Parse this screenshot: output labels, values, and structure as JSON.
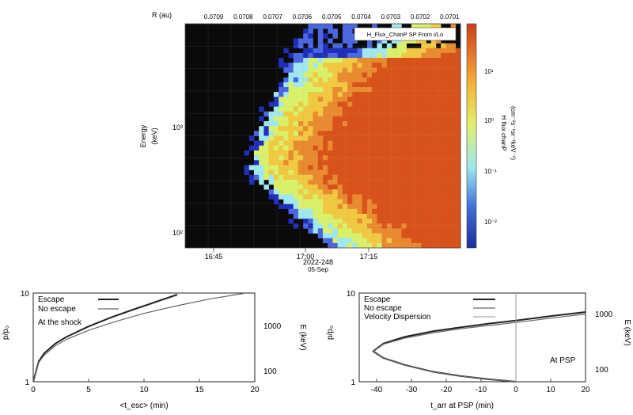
{
  "top_panel": {
    "r_axis_label": "R (au)",
    "r_ticks": [
      "0.0709",
      "0.0708",
      "0.0707",
      "0.0706",
      "0.0705",
      "0.0704",
      "0.0703",
      "0.0702",
      "0.0701"
    ],
    "legend_label": "H_Flux_ChanP SP From i/Lo",
    "ylabel_line1": "Energy",
    "ylabel_line2": "(keV)",
    "y_ticks": [
      "10²",
      "10³"
    ],
    "x_ticks": [
      "16:45",
      "17:00",
      "17:15"
    ],
    "date_line1": "2022-248",
    "date_line2": "05-Sep",
    "colorbar_label_line1": "H flux chanP",
    "colorbar_label_line2": "(cm⁻²s⁻¹sr⁻¹keV⁻¹)",
    "colorbar_ticks": [
      "10¹",
      "10⁰",
      "10⁻¹",
      "10⁻²"
    ],
    "colors": [
      "#0a0a0a",
      "#1f2fb8",
      "#4a66e0",
      "#9fe8f0",
      "#d9f06a",
      "#f0c842",
      "#e88b30",
      "#d8521c"
    ]
  },
  "chart_data": [
    {
      "type": "heatmap",
      "title": "",
      "xlabel": "",
      "ylabel": "Energy (keV)",
      "x_ticks": [
        "16:45",
        "17:00",
        "17:15"
      ],
      "y_scale": "log",
      "ylim": [
        75,
        2500
      ],
      "colorbar_label": "H flux chanP (cm⁻²s⁻¹sr⁻¹keV⁻¹)",
      "description_values": {
        "onset_time_high_energy": "16:57",
        "onset_time_low_energy": "17:05"
      }
    },
    {
      "type": "line",
      "xlabel": "<t_esc> (min)",
      "ylabel": "p/p₀",
      "y2label": "E (keV)",
      "xlim": [
        0,
        20
      ],
      "ylim": [
        1,
        10
      ],
      "y_scale": "log",
      "x_ticks": [
        "0",
        "5",
        "10",
        "15",
        "20"
      ],
      "y_ticks": [
        "1",
        "10"
      ],
      "y2_ticks": [
        "1000",
        "100"
      ],
      "annotation": "At the shock",
      "series": [
        {
          "name": "Escape",
          "x": [
            0,
            0.5,
            1,
            2,
            3,
            5,
            7,
            9,
            11,
            13
          ],
          "y": [
            1,
            1.7,
            2.1,
            2.7,
            3.2,
            4.2,
            5.3,
            6.5,
            7.9,
            9.6
          ]
        },
        {
          "name": "No escape",
          "x": [
            0,
            0.5,
            1,
            2,
            3,
            5,
            7,
            10,
            13,
            16,
            19
          ],
          "y": [
            1,
            1.65,
            2.0,
            2.55,
            3.0,
            3.8,
            4.6,
            5.9,
            7.2,
            8.6,
            9.9
          ]
        }
      ]
    },
    {
      "type": "line",
      "xlabel": "t_arr at PSP (min)",
      "ylabel": "p/p₀",
      "y2label": "E (keV)",
      "xlim": [
        -45,
        20
      ],
      "ylim": [
        1,
        10
      ],
      "y_scale": "log",
      "x_ticks": [
        "-40",
        "-30",
        "-20",
        "-10",
        "0",
        "10",
        "20"
      ],
      "y_ticks": [
        "1",
        "10"
      ],
      "y2_ticks": [
        "1000",
        "100"
      ],
      "annotation": "At PSP",
      "series": [
        {
          "name": "Escape",
          "x": [
            0,
            -8,
            -16,
            -24,
            -32,
            -38,
            -41,
            -38,
            -32,
            -24,
            -16,
            -8,
            0,
            10,
            20
          ],
          "y": [
            1,
            1.07,
            1.16,
            1.3,
            1.55,
            1.85,
            2.2,
            2.7,
            3.2,
            3.7,
            4.1,
            4.5,
            4.9,
            5.5,
            6.1
          ]
        },
        {
          "name": "No escape",
          "x": [
            0,
            -8,
            -16,
            -24,
            -32,
            -38,
            -41,
            -38,
            -32,
            -24,
            -16,
            -8,
            0,
            10,
            20
          ],
          "y": [
            1,
            1.07,
            1.16,
            1.3,
            1.55,
            1.85,
            2.2,
            2.65,
            3.1,
            3.55,
            3.95,
            4.3,
            4.65,
            5.2,
            5.8
          ]
        },
        {
          "name": "Velocity Dispersion",
          "x": [
            0,
            0
          ],
          "y": [
            1,
            10
          ]
        }
      ]
    }
  ]
}
